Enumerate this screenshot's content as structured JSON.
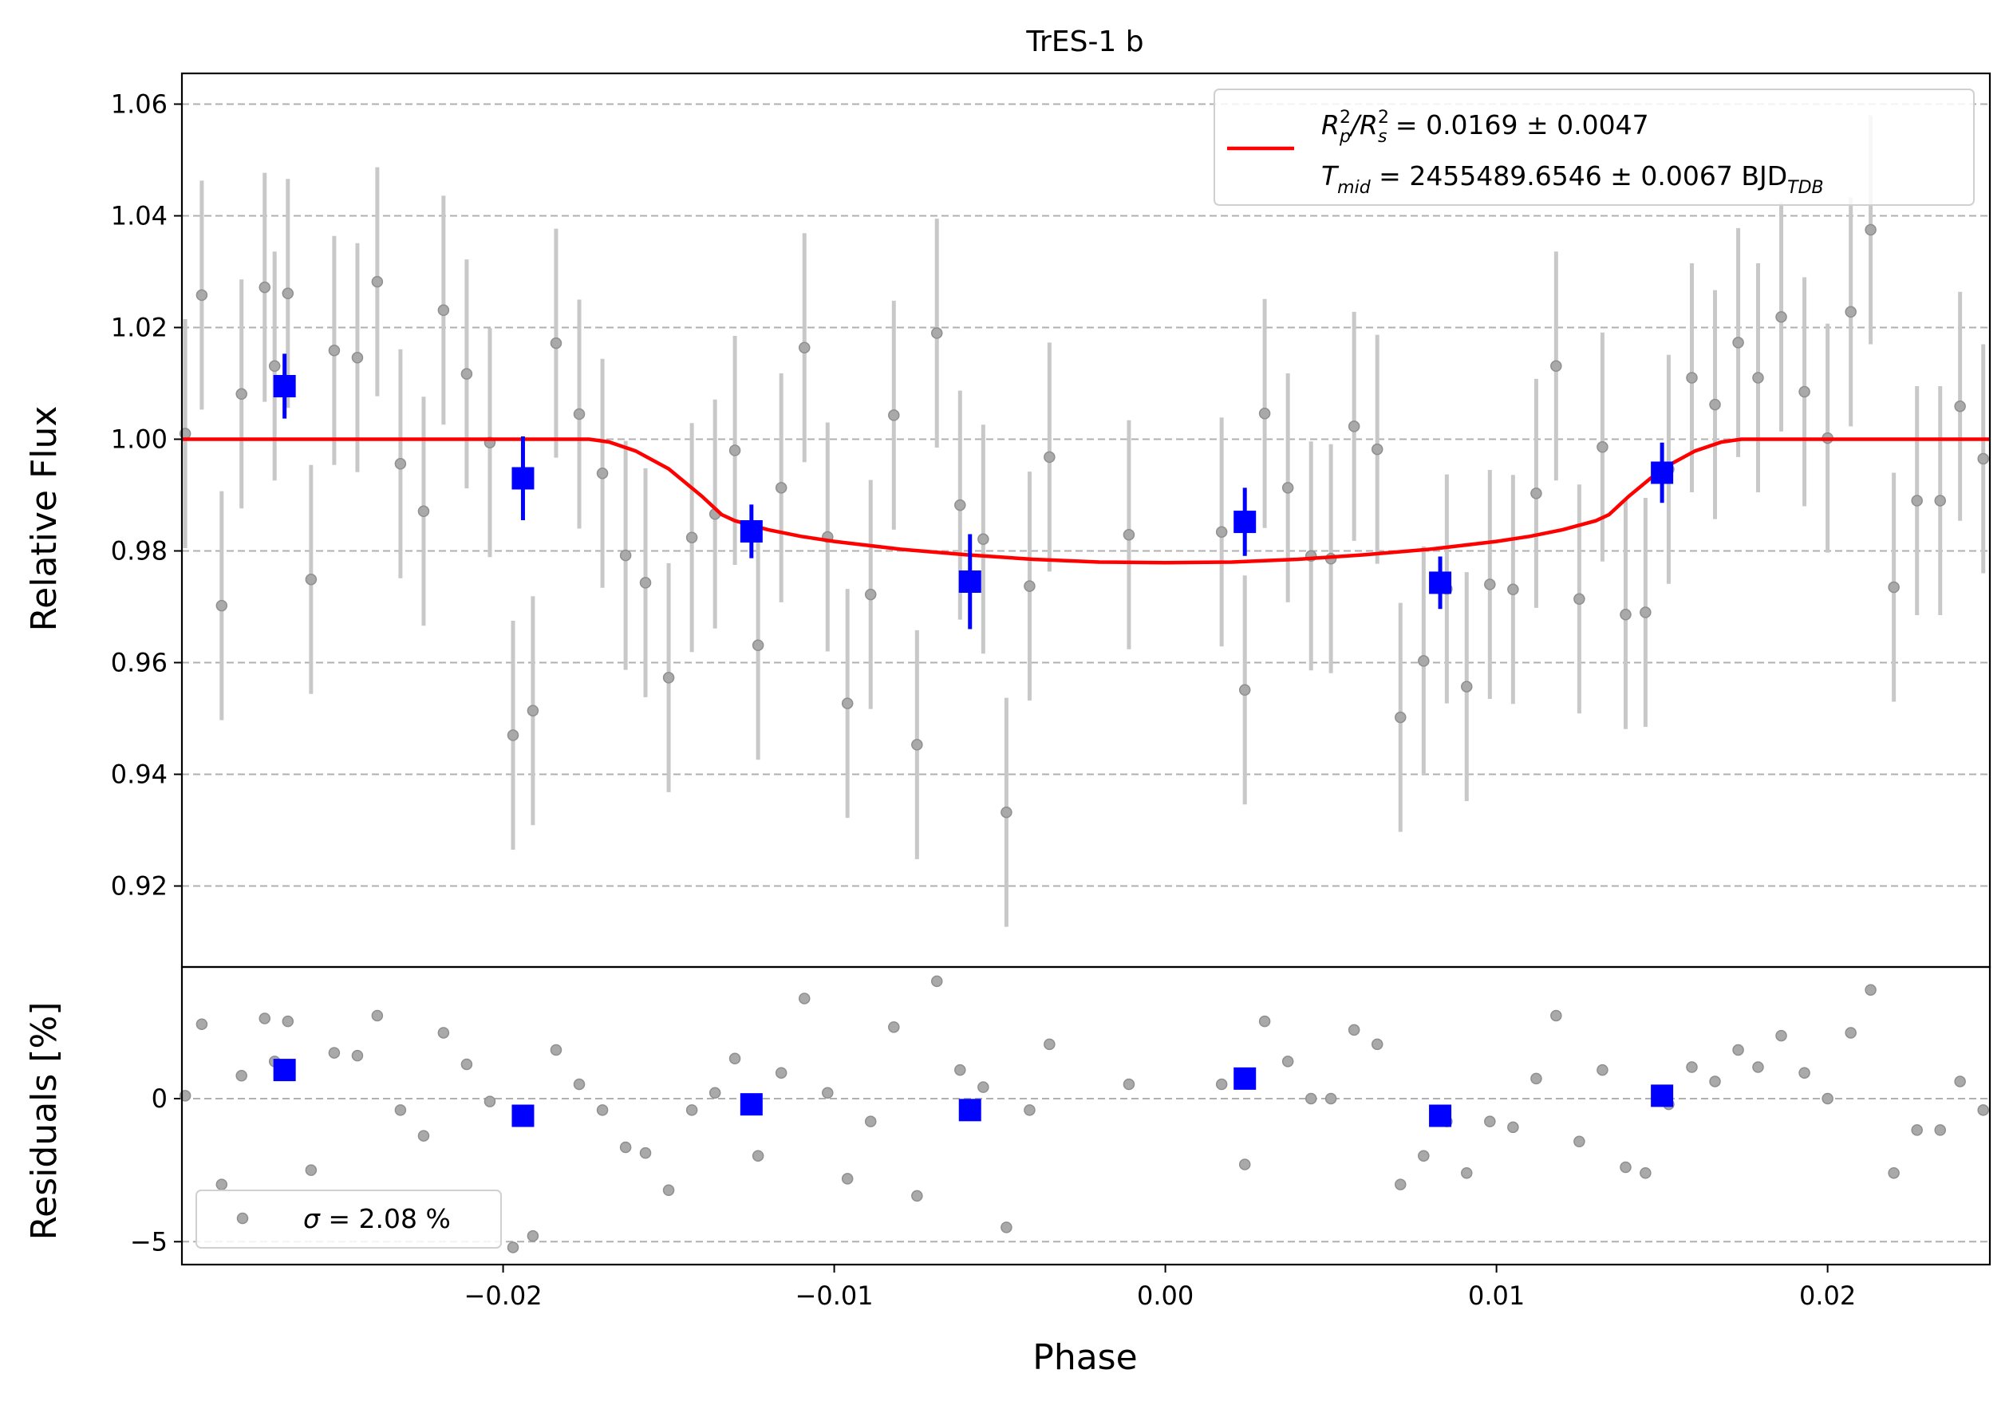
{
  "chart_data": {
    "type": "scatter",
    "title": "TrES-1 b",
    "xlabel": "Phase",
    "xlim": [
      -0.0297,
      0.0249
    ],
    "xticks": [
      -0.02,
      -0.01,
      0.0,
      0.01,
      0.02
    ],
    "xtick_labels": [
      "−0.02",
      "−0.01",
      "0.00",
      "0.01",
      "0.02"
    ],
    "grid": "horizontal dashed",
    "panels": {
      "top": {
        "ylabel": "Relative Flux",
        "ylim": [
          0.9055,
          1.0655
        ],
        "yticks": [
          0.92,
          0.94,
          0.96,
          0.98,
          1.0,
          1.02,
          1.04,
          1.06
        ],
        "ytick_labels": [
          "0.92",
          "0.94",
          "0.96",
          "0.98",
          "1.00",
          "1.02",
          "1.04",
          "1.06"
        ],
        "legend": {
          "placement": "top-right",
          "line1": {
            "prefix": "R",
            "sub1": "p",
            "sup1": "2",
            "slash": "/R",
            "sub2": "s",
            "sup2": "2",
            "value": " = 0.0169 ± 0.0047"
          },
          "line2": {
            "prefix": "T",
            "sub1": "mid",
            "value": " = 2455489.6546 ± 0.0067 BJD",
            "sub2": "TDB"
          }
        }
      },
      "bottom": {
        "ylabel": "Residuals [%]",
        "ylim": [
          -5.8,
          4.6
        ],
        "yticks": [
          -5,
          0
        ],
        "ytick_labels": [
          "−5",
          "0"
        ],
        "legend": {
          "placement": "lower-left",
          "sigma_symbol": "σ",
          "text": " = 2.08 %"
        }
      }
    },
    "series": [
      {
        "role": "raw data",
        "color": "#a9a9a9",
        "errorbar_color": "#c8c8c8",
        "flux_error": 0.0205,
        "x": [
          -0.0296,
          -0.0291,
          -0.0285,
          -0.0279,
          -0.0272,
          -0.0269,
          -0.0265,
          -0.0258,
          -0.0251,
          -0.0244,
          -0.0238,
          -0.0231,
          -0.0224,
          -0.0218,
          -0.0211,
          -0.0204,
          -0.0197,
          -0.0191,
          -0.0184,
          -0.0177,
          -0.017,
          -0.0163,
          -0.0157,
          -0.015,
          -0.0143,
          -0.0136,
          -0.013,
          -0.0123,
          -0.0116,
          -0.0109,
          -0.0102,
          -0.0096,
          -0.0089,
          -0.0082,
          -0.0075,
          -0.0069,
          -0.0062,
          -0.0055,
          -0.0048,
          -0.0041,
          -0.0035,
          -0.0011,
          0.0017,
          0.0024,
          0.003,
          0.0037,
          0.0044,
          0.005,
          0.0057,
          0.0064,
          0.0071,
          0.0078,
          0.0085,
          0.0091,
          0.0098,
          0.0105,
          0.0112,
          0.0118,
          0.0125,
          0.0132,
          0.0139,
          0.0145,
          0.0152,
          0.0159,
          0.0166,
          0.0173,
          0.0179,
          0.0186,
          0.0193,
          0.02,
          0.0207,
          0.0213,
          0.022,
          0.0227,
          0.0234,
          0.024,
          0.0247
        ],
        "flux": [
          1.001,
          1.0258,
          0.9702,
          1.0081,
          1.0272,
          1.0131,
          1.0261,
          0.9749,
          1.0159,
          1.0146,
          1.0282,
          0.9956,
          0.9871,
          1.0231,
          1.0117,
          0.9994,
          0.947,
          0.9514,
          1.0172,
          1.0045,
          0.9939,
          0.9792,
          0.9743,
          0.9573,
          0.9824,
          0.9866,
          0.998,
          0.9631,
          0.9913,
          1.0164,
          0.9825,
          0.9527,
          0.9722,
          1.0043,
          0.9453,
          1.019,
          0.9882,
          0.9821,
          0.9332,
          0.9737,
          0.9968,
          0.9829,
          0.9834,
          0.9551,
          1.0046,
          0.9913,
          0.9791,
          0.9786,
          1.0023,
          0.9982,
          0.9502,
          0.9603,
          0.9732,
          0.9557,
          0.974,
          0.9731,
          0.9903,
          1.0131,
          0.9714,
          0.9986,
          0.9686,
          0.969,
          0.9946,
          1.011,
          1.0062,
          1.0173,
          1.011,
          1.0219,
          1.0085,
          1.0002,
          1.0228,
          1.0375,
          0.9735,
          0.989,
          0.989,
          1.0059,
          0.9965
        ],
        "residuals": [
          0.1,
          2.6,
          -3.0,
          0.8,
          2.8,
          1.3,
          2.7,
          -2.5,
          1.6,
          1.5,
          2.9,
          -0.4,
          -1.3,
          2.3,
          1.2,
          -0.1,
          -5.2,
          -4.8,
          1.7,
          0.5,
          -0.4,
          -1.7,
          -1.9,
          -3.2,
          -0.4,
          0.2,
          1.4,
          -2.0,
          0.9,
          3.5,
          0.2,
          -2.8,
          -0.8,
          2.5,
          -3.4,
          4.1,
          1.0,
          0.4,
          -4.5,
          -0.4,
          1.9,
          0.5,
          0.5,
          -2.3,
          2.7,
          1.3,
          0.0,
          0.0,
          2.4,
          1.9,
          -3.0,
          -2.0,
          -0.8,
          -2.6,
          -0.8,
          -1.0,
          0.7,
          2.9,
          -1.5,
          1.0,
          -2.4,
          -2.6,
          -0.2,
          1.1,
          0.6,
          1.7,
          1.1,
          2.2,
          0.9,
          0.0,
          2.3,
          3.8,
          -2.6,
          -1.1,
          -1.1,
          0.6,
          -0.4
        ]
      },
      {
        "role": "binned data",
        "color": "#0000ff",
        "x": [
          -0.0266,
          -0.0194,
          -0.0125,
          -0.0059,
          0.0024,
          0.0083,
          0.015
        ],
        "flux": [
          1.0095,
          0.993,
          0.9835,
          0.9745,
          0.9852,
          0.9743,
          0.994
        ],
        "flux_error": [
          0.0058,
          0.0075,
          0.0048,
          0.0085,
          0.0061,
          0.0047,
          0.0054
        ],
        "residuals": [
          1.0,
          -0.6,
          -0.2,
          -0.4,
          0.7,
          -0.6,
          0.1
        ]
      },
      {
        "role": "transit model",
        "color": "#ff0000",
        "type": "line",
        "x": [
          -0.0297,
          -0.0174,
          -0.0168,
          -0.016,
          -0.015,
          -0.014,
          -0.0134,
          -0.013,
          -0.012,
          -0.011,
          -0.01,
          -0.009,
          -0.008,
          -0.006,
          -0.004,
          -0.002,
          0.0,
          0.002,
          0.004,
          0.006,
          0.008,
          0.009,
          0.01,
          0.011,
          0.012,
          0.013,
          0.0134,
          0.014,
          0.015,
          0.016,
          0.0168,
          0.0174,
          0.0249
        ],
        "flux": [
          1.0,
          1.0,
          0.9995,
          0.9979,
          0.9947,
          0.9898,
          0.9865,
          0.9854,
          0.9838,
          0.9826,
          0.9817,
          0.981,
          0.9803,
          0.9793,
          0.9785,
          0.978,
          0.9779,
          0.978,
          0.9785,
          0.9793,
          0.9803,
          0.981,
          0.9817,
          0.9826,
          0.9838,
          0.9854,
          0.9865,
          0.9898,
          0.9947,
          0.9979,
          0.9995,
          1.0,
          1.0
        ]
      }
    ]
  }
}
